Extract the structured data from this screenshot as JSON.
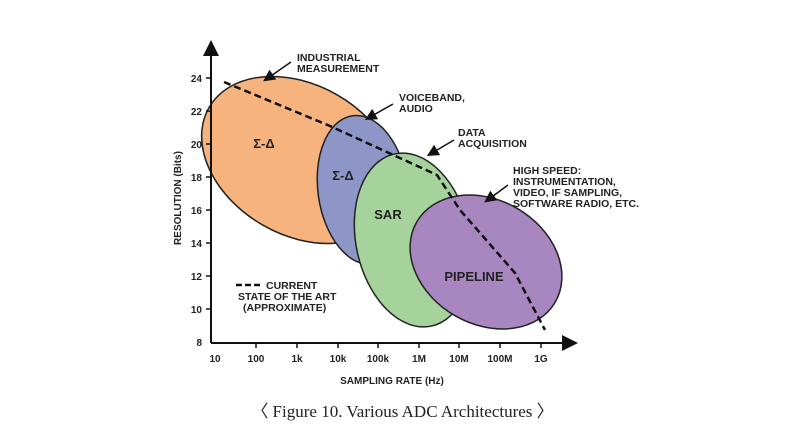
{
  "diagram": {
    "y_axis_label": "RESOLUTION (Bits)",
    "x_axis_label": "SAMPLING RATE (Hz)",
    "y_ticks": [
      "24",
      "22",
      "20",
      "18",
      "16",
      "14",
      "12",
      "10",
      "8"
    ],
    "x_ticks": [
      "10",
      "100",
      "1k",
      "10k",
      "100k",
      "1M",
      "10M",
      "100M",
      "1G"
    ],
    "regions": [
      {
        "id": "sigma-delta-industrial",
        "label": "Σ-Δ",
        "color": "#f6b37d"
      },
      {
        "id": "sigma-delta-voiceband",
        "label": "Σ-Δ",
        "color": "#8d96c6"
      },
      {
        "id": "sar",
        "label": "SAR",
        "color": "#a6d39b"
      },
      {
        "id": "pipeline",
        "label": "PIPELINE",
        "color": "#a886c0"
      }
    ],
    "callouts": [
      {
        "id": "industrial",
        "lines": [
          "INDUSTRIAL",
          "MEASUREMENT"
        ]
      },
      {
        "id": "voiceband",
        "lines": [
          "VOICEBAND,",
          "AUDIO"
        ]
      },
      {
        "id": "data-acquisition",
        "lines": [
          "DATA",
          "ACQUISITION"
        ]
      },
      {
        "id": "high-speed",
        "lines": [
          "HIGH SPEED:",
          "INSTRUMENTATION,",
          "VIDEO, IF SAMPLING,",
          "SOFTWARE RADIO, ETC."
        ]
      }
    ],
    "legend": {
      "lines": [
        "CURRENT",
        "STATE OF THE ART",
        "(APPROXIMATE)"
      ]
    }
  },
  "caption": "〈 Figure 10. Various ADC Architectures 〉"
}
